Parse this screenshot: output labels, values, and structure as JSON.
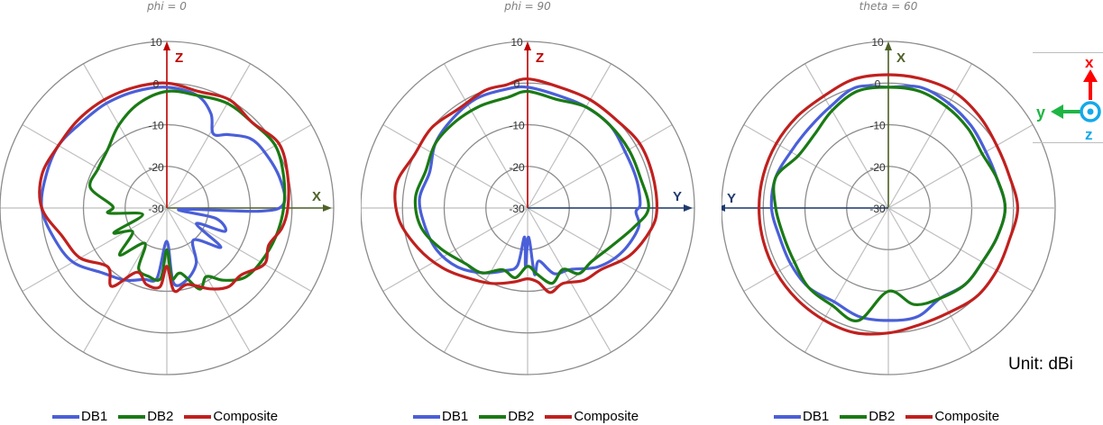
{
  "unit_label": "Unit: dBi",
  "legend": [
    {
      "label": "DB1",
      "color": "#4a5fd8"
    },
    {
      "label": "DB2",
      "color": "#1a7a14"
    },
    {
      "label": "Composite",
      "color": "#c0201e"
    }
  ],
  "coordinate_indicator": {
    "x_label": "x",
    "x_color": "#ff0000",
    "y_label": "y",
    "y_color": "#1fb544",
    "z_label": "z",
    "z_color": "#14a9e8"
  },
  "chart_data": [
    {
      "type": "polar",
      "title": "phi = 0",
      "radial_ticks": [
        10,
        0,
        -10,
        -20,
        -30
      ],
      "rlim": [
        -30,
        10
      ],
      "unit": "dBi",
      "axis_up": {
        "label": "Z",
        "color": "#c00000"
      },
      "axis_right": {
        "label": "X",
        "color": "#4f6228"
      },
      "grid_spokes_deg": 30,
      "series": [
        {
          "name": "DB1",
          "points": [
            [
              0,
              -1
            ],
            [
              15,
              -2
            ],
            [
              25,
              -5
            ],
            [
              32,
              -9
            ],
            [
              40,
              -7
            ],
            [
              50,
              -4
            ],
            [
              60,
              -3
            ],
            [
              75,
              -2
            ],
            [
              88,
              -2
            ],
            [
              92,
              -8
            ],
            [
              96,
              -27
            ],
            [
              102,
              -18
            ],
            [
              112,
              -15
            ],
            [
              118,
              -22
            ],
            [
              126,
              -14
            ],
            [
              140,
              -20
            ],
            [
              152,
              -15
            ],
            [
              165,
              -12
            ],
            [
              175,
              -12
            ],
            [
              180,
              -22
            ],
            [
              188,
              -13
            ],
            [
              198,
              -12
            ],
            [
              210,
              -10
            ],
            [
              225,
              -8
            ],
            [
              240,
              -4
            ],
            [
              255,
              -2
            ],
            [
              270,
              0
            ],
            [
              285,
              0
            ],
            [
              300,
              0
            ],
            [
              315,
              -1
            ],
            [
              330,
              -1
            ],
            [
              345,
              -1
            ]
          ]
        },
        {
          "name": "DB2",
          "points": [
            [
              0,
              -2
            ],
            [
              15,
              -2
            ],
            [
              30,
              -1
            ],
            [
              45,
              -1
            ],
            [
              60,
              0
            ],
            [
              75,
              -1
            ],
            [
              90,
              -2
            ],
            [
              105,
              -3
            ],
            [
              120,
              -4
            ],
            [
              132,
              -5
            ],
            [
              142,
              -8
            ],
            [
              150,
              -11
            ],
            [
              158,
              -9
            ],
            [
              168,
              -14
            ],
            [
              176,
              -13
            ],
            [
              180,
              -20
            ],
            [
              185,
              -13
            ],
            [
              195,
              -13
            ],
            [
              205,
              -14
            ],
            [
              212,
              -20
            ],
            [
              225,
              -14
            ],
            [
              235,
              -20
            ],
            [
              245,
              -16
            ],
            [
              255,
              -24
            ],
            [
              265,
              -16
            ],
            [
              272,
              -17
            ],
            [
              285,
              -11
            ],
            [
              300,
              -11
            ],
            [
              315,
              -10
            ],
            [
              330,
              -7
            ],
            [
              345,
              -4
            ]
          ]
        },
        {
          "name": "Composite",
          "points": [
            [
              0,
              0
            ],
            [
              15,
              -1
            ],
            [
              30,
              0
            ],
            [
              45,
              -1
            ],
            [
              60,
              1
            ],
            [
              75,
              0
            ],
            [
              90,
              -1
            ],
            [
              100,
              -2
            ],
            [
              110,
              -4
            ],
            [
              120,
              -3
            ],
            [
              132,
              -6
            ],
            [
              142,
              -6
            ],
            [
              152,
              -8
            ],
            [
              165,
              -11
            ],
            [
              175,
              -10
            ],
            [
              180,
              -16
            ],
            [
              185,
              -11
            ],
            [
              195,
              -11
            ],
            [
              205,
              -13
            ],
            [
              215,
              -7
            ],
            [
              225,
              -10
            ],
            [
              240,
              -6
            ],
            [
              255,
              -4
            ],
            [
              270,
              0
            ],
            [
              285,
              1
            ],
            [
              300,
              0
            ],
            [
              315,
              0
            ],
            [
              330,
              0
            ],
            [
              345,
              0
            ]
          ]
        }
      ]
    },
    {
      "type": "polar",
      "title": "phi = 90",
      "radial_ticks": [
        10,
        0,
        -10,
        -20,
        -30
      ],
      "rlim": [
        -30,
        10
      ],
      "unit": "dBi",
      "axis_up": {
        "label": "Z",
        "color": "#c00000"
      },
      "axis_right": {
        "label": "Y",
        "color": "#1f3a6e"
      },
      "grid_spokes_deg": 30,
      "series": [
        {
          "name": "DB1",
          "points": [
            [
              0,
              -1
            ],
            [
              15,
              -2
            ],
            [
              30,
              -2
            ],
            [
              45,
              -2
            ],
            [
              60,
              -3
            ],
            [
              75,
              -3
            ],
            [
              88,
              -3
            ],
            [
              92,
              -4
            ],
            [
              100,
              -3
            ],
            [
              115,
              -5
            ],
            [
              130,
              -8
            ],
            [
              145,
              -12
            ],
            [
              158,
              -13
            ],
            [
              168,
              -17
            ],
            [
              174,
              -14
            ],
            [
              178,
              -23
            ],
            [
              182,
              -16
            ],
            [
              186,
              -23
            ],
            [
              190,
              -16
            ],
            [
              200,
              -14
            ],
            [
              215,
              -11
            ],
            [
              230,
              -8
            ],
            [
              245,
              -6
            ],
            [
              260,
              -5
            ],
            [
              275,
              -4
            ],
            [
              290,
              -5
            ],
            [
              305,
              -3
            ],
            [
              320,
              -2
            ],
            [
              335,
              -1
            ],
            [
              350,
              -1
            ]
          ]
        },
        {
          "name": "DB2",
          "points": [
            [
              0,
              -2
            ],
            [
              15,
              -3
            ],
            [
              30,
              -2
            ],
            [
              45,
              -2
            ],
            [
              60,
              -2
            ],
            [
              75,
              -2
            ],
            [
              90,
              -1
            ],
            [
              100,
              -4
            ],
            [
              115,
              -8
            ],
            [
              130,
              -10
            ],
            [
              142,
              -10
            ],
            [
              150,
              -13
            ],
            [
              162,
              -11
            ],
            [
              172,
              -14
            ],
            [
              180,
              -16
            ],
            [
              190,
              -13
            ],
            [
              202,
              -14
            ],
            [
              215,
              -11
            ],
            [
              228,
              -10
            ],
            [
              245,
              -7
            ],
            [
              260,
              -4
            ],
            [
              275,
              -3
            ],
            [
              290,
              -4
            ],
            [
              305,
              -3
            ],
            [
              320,
              -3
            ],
            [
              335,
              -3
            ],
            [
              350,
              -3
            ]
          ]
        },
        {
          "name": "Composite",
          "points": [
            [
              0,
              1
            ],
            [
              15,
              0
            ],
            [
              30,
              0
            ],
            [
              45,
              0
            ],
            [
              60,
              1
            ],
            [
              75,
              1
            ],
            [
              90,
              1
            ],
            [
              100,
              0
            ],
            [
              115,
              -3
            ],
            [
              130,
              -7
            ],
            [
              142,
              -8
            ],
            [
              155,
              -10
            ],
            [
              165,
              -9
            ],
            [
              172,
              -12
            ],
            [
              180,
              -13
            ],
            [
              190,
              -12
            ],
            [
              205,
              -10
            ],
            [
              220,
              -8
            ],
            [
              235,
              -5
            ],
            [
              250,
              -2
            ],
            [
              265,
              1
            ],
            [
              280,
              2
            ],
            [
              295,
              0
            ],
            [
              310,
              0
            ],
            [
              325,
              -1
            ],
            [
              340,
              0
            ],
            [
              350,
              0
            ]
          ]
        }
      ]
    },
    {
      "type": "polar",
      "title": "theta = 60",
      "radial_ticks": [
        10,
        0,
        -10,
        -20,
        -30
      ],
      "rlim": [
        -30,
        10
      ],
      "unit": "dBi",
      "axis_up": {
        "label": "X",
        "color": "#4f6228"
      },
      "axis_left": {
        "label": "Y",
        "color": "#1f3a6e"
      },
      "grid_spokes_deg": 30,
      "series": [
        {
          "name": "DB1",
          "points": [
            [
              0,
              -1
            ],
            [
              15,
              0
            ],
            [
              30,
              -1
            ],
            [
              45,
              -2
            ],
            [
              60,
              -3
            ],
            [
              75,
              -3
            ],
            [
              90,
              -2
            ],
            [
              105,
              -3
            ],
            [
              120,
              -4
            ],
            [
              135,
              -4
            ],
            [
              150,
              -5
            ],
            [
              165,
              -3
            ],
            [
              180,
              -3
            ],
            [
              195,
              -3
            ],
            [
              210,
              -4
            ],
            [
              225,
              -3
            ],
            [
              240,
              -3
            ],
            [
              255,
              -3
            ],
            [
              270,
              -2
            ],
            [
              285,
              -2
            ],
            [
              300,
              -3
            ],
            [
              315,
              -3
            ],
            [
              330,
              -2
            ],
            [
              345,
              0
            ]
          ]
        },
        {
          "name": "DB2",
          "points": [
            [
              0,
              -1
            ],
            [
              15,
              -1
            ],
            [
              30,
              -2
            ],
            [
              45,
              -3
            ],
            [
              60,
              -4
            ],
            [
              75,
              -3
            ],
            [
              90,
              -2
            ],
            [
              105,
              -3
            ],
            [
              120,
              -4
            ],
            [
              135,
              -4
            ],
            [
              150,
              -5
            ],
            [
              165,
              -6
            ],
            [
              180,
              -10
            ],
            [
              195,
              -2
            ],
            [
              210,
              -3
            ],
            [
              225,
              -3
            ],
            [
              240,
              -4
            ],
            [
              255,
              -4
            ],
            [
              270,
              -3
            ],
            [
              285,
              -2
            ],
            [
              300,
              -5
            ],
            [
              315,
              -5
            ],
            [
              330,
              -3
            ],
            [
              345,
              -1
            ]
          ]
        },
        {
          "name": "Composite",
          "points": [
            [
              0,
              2
            ],
            [
              15,
              2
            ],
            [
              30,
              2
            ],
            [
              45,
              1
            ],
            [
              60,
              0
            ],
            [
              75,
              0
            ],
            [
              90,
              1
            ],
            [
              105,
              0
            ],
            [
              120,
              0
            ],
            [
              135,
              0
            ],
            [
              150,
              -1
            ],
            [
              165,
              -1
            ],
            [
              180,
              0
            ],
            [
              195,
              1
            ],
            [
              210,
              1
            ],
            [
              225,
              1
            ],
            [
              240,
              1
            ],
            [
              255,
              1
            ],
            [
              270,
              1
            ],
            [
              285,
              1
            ],
            [
              300,
              1
            ],
            [
              315,
              1
            ],
            [
              330,
              1
            ],
            [
              345,
              2
            ]
          ]
        }
      ]
    }
  ]
}
